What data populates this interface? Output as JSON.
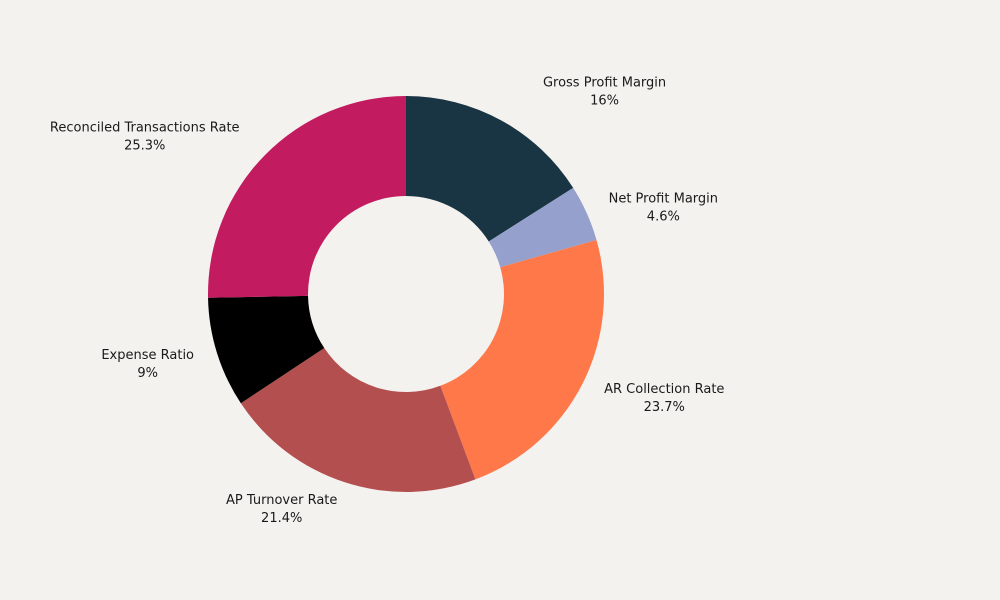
{
  "chart_data": {
    "type": "donut",
    "title": "",
    "legend": "none",
    "slices": [
      {
        "label": "Gross Profit Margin",
        "value": 16,
        "value_label": "16%",
        "color": "#193442"
      },
      {
        "label": "Net Profit Margin",
        "value": 4.6,
        "value_label": "4.6%",
        "color": "#95a1cc"
      },
      {
        "label": "AR Collection Rate",
        "value": 23.7,
        "value_label": "23.7%",
        "color": "#ff7849"
      },
      {
        "label": "AP Turnover Rate",
        "value": 21.4,
        "value_label": "21.4%",
        "color": "#b34f4f"
      },
      {
        "label": "Expense Ratio",
        "value": 9,
        "value_label": "9%",
        "color": "#000000"
      },
      {
        "label": "Reconciled Transactions Rate",
        "value": 25.3,
        "value_label": "25.3%",
        "color": "#c21b5f"
      }
    ],
    "background": "#f4f2ef"
  }
}
